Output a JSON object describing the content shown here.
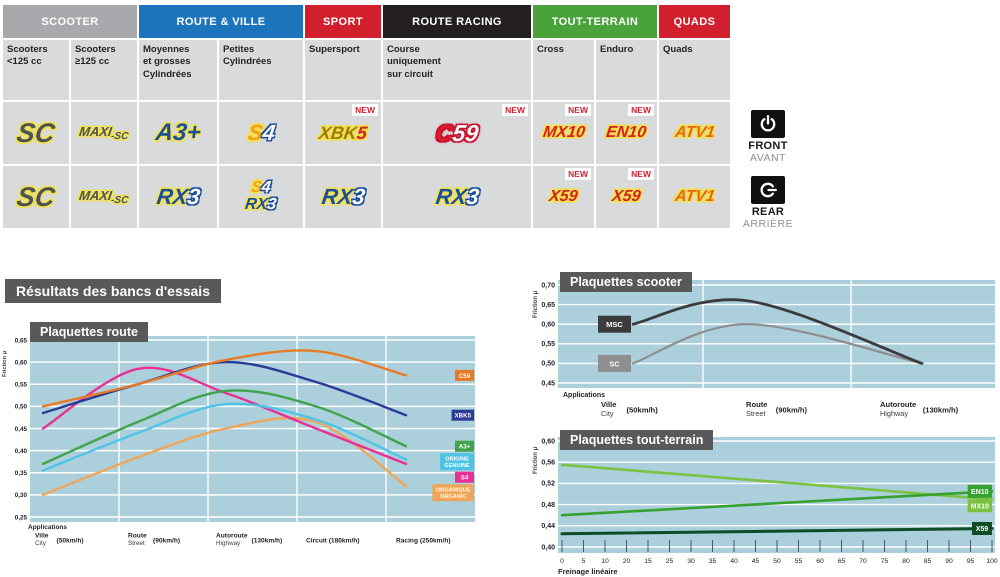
{
  "table": {
    "new_label": "NEW",
    "groups": [
      {
        "label": "SCOOTER",
        "color": "#a7a9ac",
        "span": 2
      },
      {
        "label": "ROUTE & VILLE",
        "color": "#1c75bc",
        "span": 2
      },
      {
        "label": "SPORT",
        "color": "#d21f2e",
        "span": 1
      },
      {
        "label": "ROUTE RACING",
        "color": "#231f20",
        "span": 1
      },
      {
        "label": "TOUT-TERRAIN",
        "color": "#4aa23a",
        "span": 2
      },
      {
        "label": "QUADS",
        "color": "#d21f2e",
        "span": 1
      }
    ],
    "subheaders": [
      "Scooters\n<125 cc",
      "Scooters\n≥125 cc",
      "Moyennes\net grosses\nCylindrées",
      "Petites\nCylindrées",
      "Supersport",
      "Course\nuniquement\nsur circuit",
      "Cross",
      "Enduro",
      "Quads"
    ],
    "rows": [
      {
        "cells": [
          {
            "logos": [
              "SC"
            ]
          },
          {
            "logos": [
              "MAXI-SC"
            ]
          },
          {
            "logos": [
              "A3+"
            ]
          },
          {
            "logos": [
              "S4"
            ]
          },
          {
            "logos": [
              "XBK5"
            ],
            "new": true
          },
          {
            "logos": [
              "C59"
            ],
            "new": true
          },
          {
            "logos": [
              "MX10"
            ],
            "new": true
          },
          {
            "logos": [
              "EN10"
            ],
            "new": true
          },
          {
            "logos": [
              "ATV1"
            ]
          }
        ]
      },
      {
        "cells": [
          {
            "logos": [
              "SC"
            ]
          },
          {
            "logos": [
              "MAXI-SC"
            ]
          },
          {
            "logos": [
              "RX3"
            ]
          },
          {
            "logos": [
              "S4",
              "RX3"
            ]
          },
          {
            "logos": [
              "RX3"
            ]
          },
          {
            "logos": [
              "RX3"
            ]
          },
          {
            "logos": [
              "X59"
            ],
            "new": true
          },
          {
            "logos": [
              "X59"
            ],
            "new": true
          },
          {
            "logos": [
              "ATV1"
            ]
          }
        ]
      }
    ]
  },
  "front_rear": {
    "front": {
      "label": "FRONT",
      "sub": "AVANT"
    },
    "rear": {
      "label": "REAR",
      "sub": "ARRIÈRE"
    }
  },
  "results_title": "Résultats des bancs d'essais",
  "chart_data": [
    {
      "id": "route",
      "type": "line",
      "title": "Plaquettes route",
      "ylabel": "Friction μ",
      "xlabel": "Applications",
      "ylim": [
        0.25,
        0.65
      ],
      "yticks": [
        "0,65",
        "0,60",
        "0,55",
        "0,50",
        "0,45",
        "0,40",
        "0,35",
        "0,30",
        "0,25"
      ],
      "x_categories": [
        {
          "fr": "Ville",
          "en": "City",
          "speed": "(50km/h)"
        },
        {
          "fr": "Route",
          "en": "Street",
          "speed": "(90km/h)"
        },
        {
          "fr": "Autoroute",
          "en": "Highway",
          "speed": "(130km/h)"
        },
        {
          "single": "Circuit (180km/h)"
        },
        {
          "single": "Racing (250km/h)"
        }
      ],
      "series": [
        {
          "name": "C59",
          "color": "#e87a25",
          "values": [
            0.5,
            0.55,
            0.605,
            0.625,
            0.57
          ]
        },
        {
          "name": "XBK5",
          "color": "#2b3a94",
          "values": [
            0.485,
            0.55,
            0.6,
            0.555,
            0.48
          ]
        },
        {
          "name": "A3+",
          "color": "#3fa44c",
          "values": [
            0.37,
            0.465,
            0.535,
            0.5,
            0.41
          ]
        },
        {
          "name": [
            "ORIGINE",
            "GENUINE"
          ],
          "color": "#4ec3e6",
          "values": [
            0.355,
            0.44,
            0.505,
            0.47,
            0.38
          ]
        },
        {
          "name": "S4",
          "color": "#ea2f95",
          "values": [
            0.45,
            0.585,
            0.53,
            0.45,
            0.37
          ]
        },
        {
          "name": [
            "ORGANIQUE",
            "ORGANIC"
          ],
          "color": "#f0a457",
          "values": [
            0.3,
            0.385,
            0.45,
            0.465,
            0.32
          ]
        }
      ]
    },
    {
      "id": "scooter",
      "type": "line",
      "title": "Plaquettes scooter",
      "ylabel": "Friction μ",
      "xlabel": "Applications",
      "ylim": [
        0.45,
        0.7
      ],
      "yticks": [
        "0,70",
        "0,65",
        "0,60",
        "0,55",
        "0,50",
        "0,45"
      ],
      "x_categories": [
        {
          "fr": "Ville",
          "en": "City",
          "speed": "(50km/h)"
        },
        {
          "fr": "Route",
          "en": "Street",
          "speed": "(90km/h)"
        },
        {
          "fr": "Autoroute",
          "en": "Highway",
          "speed": "(130km/h)"
        }
      ],
      "series": [
        {
          "name": "MSC",
          "color": "#3b3c3e",
          "values": [
            0.6,
            0.66,
            0.5
          ]
        },
        {
          "name": "SC",
          "color": "#8c8e90",
          "values": [
            0.5,
            0.6,
            0.5
          ]
        }
      ]
    },
    {
      "id": "tout-terrain",
      "type": "line",
      "title": "Plaquettes tout-terrain",
      "ylabel": "Friction μ",
      "xlabel": "Freinage linéaire",
      "ylim": [
        0.4,
        0.6
      ],
      "yticks": [
        "0,60",
        "0,56",
        "0,52",
        "0,48",
        "0,44",
        "0,40"
      ],
      "xticks": [
        "0",
        "5",
        "10",
        "20",
        "15",
        "25",
        "30",
        "35",
        "40",
        "45",
        "50",
        "55",
        "60",
        "65",
        "70",
        "75",
        "80",
        "85",
        "90",
        "95",
        "100"
      ],
      "series": [
        {
          "name": "EN10",
          "color": "#35a12e",
          "values": [
            0.46,
            0.505
          ]
        },
        {
          "name": "MX10",
          "color": "#7cc242",
          "values": [
            0.555,
            0.49
          ]
        },
        {
          "name": "X59",
          "color": "#0f4d26",
          "values": [
            0.425,
            0.435
          ]
        }
      ]
    }
  ]
}
